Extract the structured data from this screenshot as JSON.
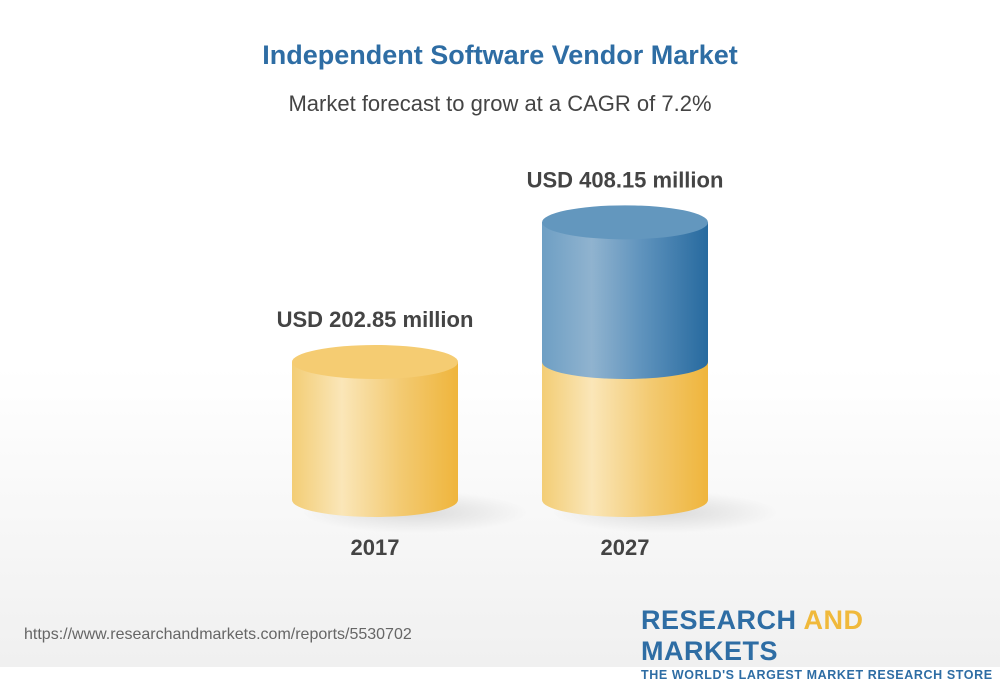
{
  "chart_data": {
    "type": "bar",
    "style": "3d-cylinder",
    "title": "Independent Software Vendor Market",
    "subtitle": "Market forecast to grow at a CAGR of 7.2%",
    "categories": [
      "2017",
      "2027"
    ],
    "values": [
      202.85,
      408.15
    ],
    "data_labels": [
      "USD 202.85 million",
      "USD 408.15 million"
    ],
    "unit": "USD million",
    "grid": false,
    "colors": {
      "base": "#f0b93b",
      "growth": "#2e6da4"
    }
  },
  "footer": {
    "url": "https://www.researchandmarkets.com/reports/5530702",
    "logo_word1": "RESEARCH",
    "logo_word2": "AND",
    "logo_word3": "MARKETS",
    "tagline": "THE WORLD'S LARGEST MARKET RESEARCH STORE"
  }
}
